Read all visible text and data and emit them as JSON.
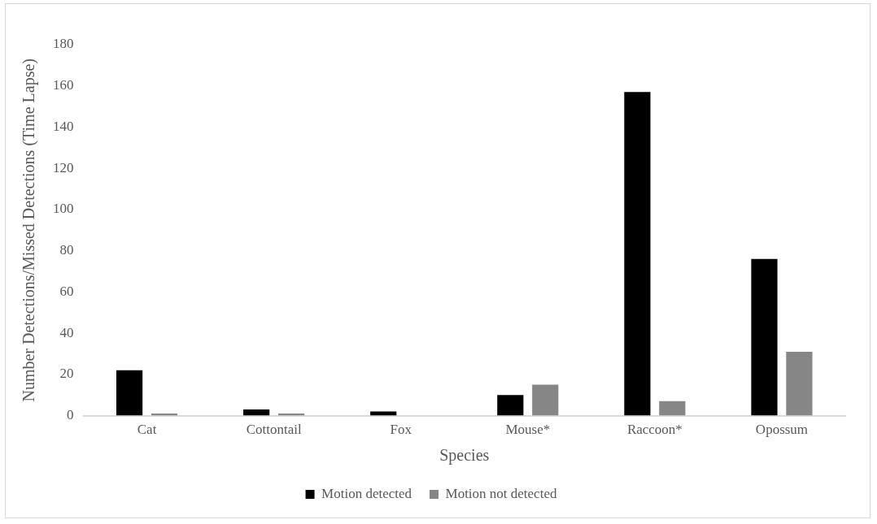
{
  "chart_data": {
    "type": "bar",
    "xlabel": "Species",
    "ylabel": "Number Detections/Missed Detections (Time Lapse)",
    "categories": [
      "Cat",
      "Cottontail",
      "Fox",
      "Mouse*",
      "Raccoon*",
      "Opossum"
    ],
    "series": [
      {
        "name": "Motion detected",
        "color": "#000000",
        "values": [
          22,
          3,
          2,
          10,
          157,
          76
        ]
      },
      {
        "name": "Motion not detected",
        "color": "#868686",
        "values": [
          1,
          1,
          0,
          15,
          7,
          31
        ]
      }
    ],
    "ylim": [
      0,
      180
    ],
    "yticks": [
      0,
      20,
      40,
      60,
      80,
      100,
      120,
      140,
      160,
      180
    ],
    "grid": false,
    "legend": "bottom"
  }
}
